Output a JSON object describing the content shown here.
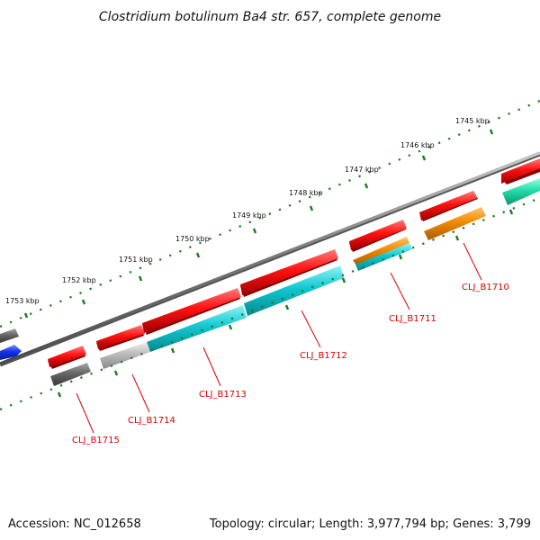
{
  "title": "Clostridium botulinum Ba4 str. 657, complete genome",
  "footer": {
    "accession": "Accession: NC_012658",
    "summary": "Topology: circular; Length: 3,977,794 bp; Genes: 3,799"
  },
  "kbp_labels": [
    "1745 kbp",
    "1746 kbp",
    "1747 kbp",
    "1748 kbp",
    "1749 kbp",
    "1750 kbp",
    "1751 kbp",
    "1752 kbp",
    "1753 kbp"
  ],
  "gene_labels": [
    "CLJ_B1710",
    "CLJ_B1711",
    "CLJ_B1712",
    "CLJ_B1713",
    "CLJ_B1714",
    "CLJ_B1715"
  ],
  "colors": {
    "backbone": "#7a7a7a",
    "tick": "#1a7a1a",
    "label": "#dd0000",
    "gene_red": "#ee1111",
    "cds_cyan": "#11c8d0",
    "cds_orange": "#f08a00",
    "cds_gray": "#666666",
    "cds_light_gray": "#bbbbbb",
    "cds_green": "#22ddaa",
    "blue": "#1133ee"
  }
}
